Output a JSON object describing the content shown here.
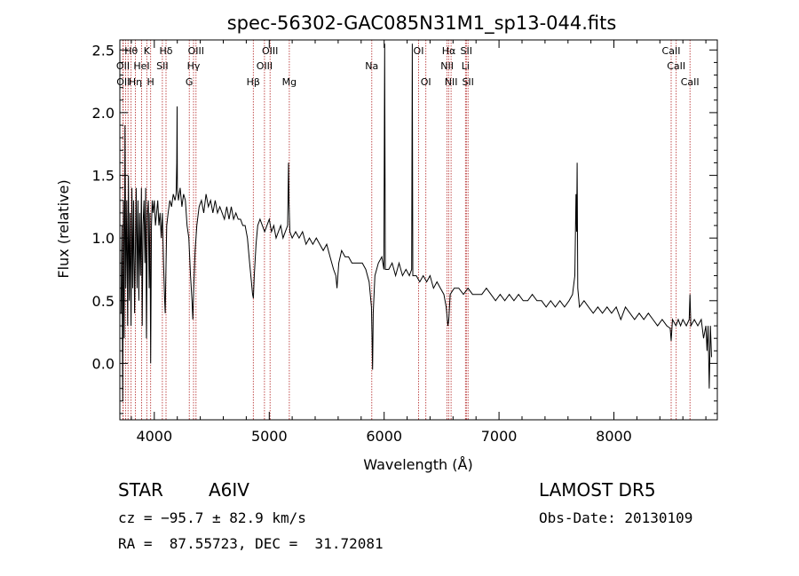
{
  "chart_data": {
    "type": "line",
    "title": "spec-56302-GAC085N31M1_sp13-044.fits",
    "xlabel": "Wavelength (Å)",
    "ylabel": "Flux (relative)",
    "xlim": [
      3700,
      8900
    ],
    "ylim": [
      -0.45,
      2.58
    ],
    "xticks": [
      4000,
      5000,
      6000,
      7000,
      8000
    ],
    "yticks": [
      0.0,
      0.5,
      1.0,
      1.5,
      2.0,
      2.5
    ],
    "ytick_labels": [
      "0.0",
      "0.5",
      "1.0",
      "1.5",
      "2.0",
      "2.5"
    ],
    "grid": false,
    "series": [
      {
        "values": [
          [
            3710,
            0.4
          ],
          [
            3718,
            1.1
          ],
          [
            3725,
            -0.3
          ],
          [
            3732,
            1.3
          ],
          [
            3738,
            0.2
          ],
          [
            3745,
            1.9
          ],
          [
            3752,
            0.6
          ],
          [
            3760,
            1.3
          ],
          [
            3768,
            0.3
          ],
          [
            3775,
            1.5
          ],
          [
            3782,
            0.5
          ],
          [
            3790,
            1.2
          ],
          [
            3797,
            0.3
          ],
          [
            3805,
            1.4
          ],
          [
            3812,
            0.6
          ],
          [
            3820,
            1.3
          ],
          [
            3828,
            0.4
          ],
          [
            3835,
            0.9
          ],
          [
            3842,
            1.4
          ],
          [
            3850,
            0.6
          ],
          [
            3858,
            1.3
          ],
          [
            3865,
            0.5
          ],
          [
            3872,
            1.2
          ],
          [
            3880,
            0.7
          ],
          [
            3888,
            1.4
          ],
          [
            3895,
            0.3
          ],
          [
            3902,
            1.1
          ],
          [
            3910,
            1.3
          ],
          [
            3918,
            0.8
          ],
          [
            3925,
            1.4
          ],
          [
            3932,
            0.2
          ],
          [
            3940,
            1.2
          ],
          [
            3948,
            1.3
          ],
          [
            3955,
            0.6
          ],
          [
            3962,
            1.2
          ],
          [
            3968,
            0.0
          ],
          [
            3975,
            1.1
          ],
          [
            3982,
            1.3
          ],
          [
            3990,
            1.2
          ],
          [
            4000,
            1.3
          ],
          [
            4010,
            1.1
          ],
          [
            4020,
            1.2
          ],
          [
            4030,
            1.3
          ],
          [
            4040,
            1.1
          ],
          [
            4050,
            1.2
          ],
          [
            4060,
            1.0
          ],
          [
            4070,
            1.2
          ],
          [
            4080,
            0.8
          ],
          [
            4090,
            0.5
          ],
          [
            4095,
            0.4
          ],
          [
            4100,
            0.7
          ],
          [
            4108,
            1.1
          ],
          [
            4120,
            1.2
          ],
          [
            4135,
            1.3
          ],
          [
            4150,
            1.25
          ],
          [
            4165,
            1.35
          ],
          [
            4180,
            1.3
          ],
          [
            4190,
            1.35
          ],
          [
            4195,
            1.6
          ],
          [
            4198,
            2.05
          ],
          [
            4201,
            1.4
          ],
          [
            4210,
            1.3
          ],
          [
            4225,
            1.4
          ],
          [
            4240,
            1.25
          ],
          [
            4255,
            1.35
          ],
          [
            4270,
            1.3
          ],
          [
            4285,
            1.1
          ],
          [
            4300,
            1.0
          ],
          [
            4315,
            0.7
          ],
          [
            4328,
            0.5
          ],
          [
            4335,
            0.35
          ],
          [
            4343,
            0.6
          ],
          [
            4355,
            0.9
          ],
          [
            4370,
            1.1
          ],
          [
            4390,
            1.25
          ],
          [
            4410,
            1.3
          ],
          [
            4430,
            1.2
          ],
          [
            4450,
            1.35
          ],
          [
            4470,
            1.25
          ],
          [
            4490,
            1.3
          ],
          [
            4510,
            1.2
          ],
          [
            4530,
            1.3
          ],
          [
            4550,
            1.2
          ],
          [
            4570,
            1.25
          ],
          [
            4590,
            1.2
          ],
          [
            4610,
            1.15
          ],
          [
            4630,
            1.25
          ],
          [
            4650,
            1.15
          ],
          [
            4670,
            1.25
          ],
          [
            4690,
            1.15
          ],
          [
            4710,
            1.2
          ],
          [
            4730,
            1.15
          ],
          [
            4750,
            1.15
          ],
          [
            4770,
            1.1
          ],
          [
            4790,
            1.1
          ],
          [
            4810,
            1.0
          ],
          [
            4830,
            0.8
          ],
          [
            4845,
            0.65
          ],
          [
            4855,
            0.55
          ],
          [
            4862,
            0.52
          ],
          [
            4870,
            0.7
          ],
          [
            4885,
            0.95
          ],
          [
            4900,
            1.1
          ],
          [
            4920,
            1.15
          ],
          [
            4940,
            1.1
          ],
          [
            4960,
            1.05
          ],
          [
            4980,
            1.1
          ],
          [
            5000,
            1.15
          ],
          [
            5020,
            1.05
          ],
          [
            5040,
            1.1
          ],
          [
            5060,
            1.0
          ],
          [
            5080,
            1.05
          ],
          [
            5100,
            1.1
          ],
          [
            5120,
            1.0
          ],
          [
            5140,
            1.05
          ],
          [
            5160,
            1.1
          ],
          [
            5168,
            1.6
          ],
          [
            5172,
            1.3
          ],
          [
            5180,
            1.05
          ],
          [
            5200,
            1.0
          ],
          [
            5230,
            1.05
          ],
          [
            5260,
            1.0
          ],
          [
            5290,
            1.05
          ],
          [
            5320,
            0.95
          ],
          [
            5350,
            1.0
          ],
          [
            5380,
            0.95
          ],
          [
            5410,
            1.0
          ],
          [
            5440,
            0.95
          ],
          [
            5470,
            0.9
          ],
          [
            5500,
            0.95
          ],
          [
            5530,
            0.85
          ],
          [
            5560,
            0.75
          ],
          [
            5580,
            0.7
          ],
          [
            5590,
            0.6
          ],
          [
            5605,
            0.8
          ],
          [
            5630,
            0.9
          ],
          [
            5660,
            0.85
          ],
          [
            5690,
            0.85
          ],
          [
            5720,
            0.8
          ],
          [
            5750,
            0.8
          ],
          [
            5780,
            0.8
          ],
          [
            5810,
            0.8
          ],
          [
            5840,
            0.75
          ],
          [
            5870,
            0.65
          ],
          [
            5890,
            0.45
          ],
          [
            5895,
            0.2
          ],
          [
            5900,
            -0.05
          ],
          [
            5905,
            0.4
          ],
          [
            5920,
            0.7
          ],
          [
            5950,
            0.8
          ],
          [
            5980,
            0.85
          ],
          [
            5998,
            0.75
          ],
          [
            6005,
            2.55
          ],
          [
            6010,
            0.75
          ],
          [
            6040,
            0.75
          ],
          [
            6070,
            0.8
          ],
          [
            6100,
            0.7
          ],
          [
            6130,
            0.8
          ],
          [
            6160,
            0.7
          ],
          [
            6190,
            0.75
          ],
          [
            6220,
            0.7
          ],
          [
            6240,
            0.75
          ],
          [
            6245,
            2.55
          ],
          [
            6250,
            0.7
          ],
          [
            6280,
            0.7
          ],
          [
            6310,
            0.65
          ],
          [
            6340,
            0.7
          ],
          [
            6370,
            0.65
          ],
          [
            6400,
            0.7
          ],
          [
            6430,
            0.6
          ],
          [
            6460,
            0.65
          ],
          [
            6490,
            0.6
          ],
          [
            6520,
            0.55
          ],
          [
            6540,
            0.45
          ],
          [
            6555,
            0.3
          ],
          [
            6563,
            0.35
          ],
          [
            6575,
            0.55
          ],
          [
            6610,
            0.6
          ],
          [
            6650,
            0.6
          ],
          [
            6690,
            0.55
          ],
          [
            6730,
            0.6
          ],
          [
            6770,
            0.55
          ],
          [
            6810,
            0.55
          ],
          [
            6850,
            0.55
          ],
          [
            6890,
            0.6
          ],
          [
            6930,
            0.55
          ],
          [
            6970,
            0.5
          ],
          [
            7010,
            0.55
          ],
          [
            7050,
            0.5
          ],
          [
            7090,
            0.55
          ],
          [
            7130,
            0.5
          ],
          [
            7170,
            0.55
          ],
          [
            7210,
            0.5
          ],
          [
            7250,
            0.5
          ],
          [
            7290,
            0.55
          ],
          [
            7330,
            0.5
          ],
          [
            7370,
            0.5
          ],
          [
            7410,
            0.45
          ],
          [
            7450,
            0.5
          ],
          [
            7490,
            0.45
          ],
          [
            7530,
            0.5
          ],
          [
            7570,
            0.45
          ],
          [
            7610,
            0.5
          ],
          [
            7640,
            0.55
          ],
          [
            7660,
            0.7
          ],
          [
            7670,
            1.35
          ],
          [
            7675,
            1.05
          ],
          [
            7680,
            1.6
          ],
          [
            7685,
            0.6
          ],
          [
            7700,
            0.45
          ],
          [
            7740,
            0.5
          ],
          [
            7780,
            0.45
          ],
          [
            7820,
            0.4
          ],
          [
            7860,
            0.45
          ],
          [
            7900,
            0.4
          ],
          [
            7940,
            0.45
          ],
          [
            7980,
            0.4
          ],
          [
            8020,
            0.45
          ],
          [
            8060,
            0.35
          ],
          [
            8100,
            0.45
          ],
          [
            8140,
            0.4
          ],
          [
            8180,
            0.35
          ],
          [
            8220,
            0.4
          ],
          [
            8260,
            0.35
          ],
          [
            8300,
            0.4
          ],
          [
            8340,
            0.35
          ],
          [
            8380,
            0.3
          ],
          [
            8420,
            0.35
          ],
          [
            8460,
            0.3
          ],
          [
            8490,
            0.28
          ],
          [
            8498,
            0.18
          ],
          [
            8510,
            0.35
          ],
          [
            8540,
            0.3
          ],
          [
            8560,
            0.35
          ],
          [
            8580,
            0.3
          ],
          [
            8600,
            0.35
          ],
          [
            8630,
            0.3
          ],
          [
            8655,
            0.35
          ],
          [
            8662,
            0.55
          ],
          [
            8670,
            0.3
          ],
          [
            8700,
            0.35
          ],
          [
            8730,
            0.3
          ],
          [
            8760,
            0.35
          ],
          [
            8780,
            0.2
          ],
          [
            8800,
            0.3
          ],
          [
            8810,
            0.1
          ],
          [
            8820,
            0.3
          ],
          [
            8830,
            -0.2
          ],
          [
            8840,
            0.3
          ],
          [
            8850,
            0.05
          ]
        ]
      }
    ],
    "line_markers": [
      {
        "wavelength": 3727,
        "labels": [
          "OII"
        ],
        "row": [
          1
        ]
      },
      {
        "wavelength": 3729,
        "labels": [
          "OII"
        ],
        "row": [
          2
        ]
      },
      {
        "wavelength": 3750,
        "labels": [],
        "row": []
      },
      {
        "wavelength": 3771,
        "labels": [],
        "row": []
      },
      {
        "wavelength": 3798,
        "labels": [
          "Hθ"
        ],
        "row": [
          0
        ]
      },
      {
        "wavelength": 3835,
        "labels": [
          "Hη"
        ],
        "row": [
          2
        ]
      },
      {
        "wavelength": 3889,
        "labels": [
          "HeI"
        ],
        "row": [
          1
        ]
      },
      {
        "wavelength": 3934,
        "labels": [
          "K"
        ],
        "row": [
          0
        ]
      },
      {
        "wavelength": 3968,
        "labels": [
          "H"
        ],
        "row": [
          2
        ]
      },
      {
        "wavelength": 4070,
        "labels": [
          "SII"
        ],
        "row": [
          1
        ]
      },
      {
        "wavelength": 4102,
        "labels": [
          "Hδ"
        ],
        "row": [
          0
        ]
      },
      {
        "wavelength": 4304,
        "labels": [
          "G"
        ],
        "row": [
          2
        ]
      },
      {
        "wavelength": 4341,
        "labels": [
          "Hγ"
        ],
        "row": [
          1
        ]
      },
      {
        "wavelength": 4363,
        "labels": [
          "OIII"
        ],
        "row": [
          0
        ]
      },
      {
        "wavelength": 4861,
        "labels": [
          "Hβ"
        ],
        "row": [
          2
        ]
      },
      {
        "wavelength": 4959,
        "labels": [
          "OIII"
        ],
        "row": [
          1
        ]
      },
      {
        "wavelength": 5007,
        "labels": [
          "OIII"
        ],
        "row": [
          0
        ]
      },
      {
        "wavelength": 5175,
        "labels": [
          "Mg"
        ],
        "row": [
          2
        ]
      },
      {
        "wavelength": 5893,
        "labels": [
          "Na"
        ],
        "row": [
          1
        ]
      },
      {
        "wavelength": 6300,
        "labels": [
          "OI"
        ],
        "row": [
          0
        ]
      },
      {
        "wavelength": 6363,
        "labels": [
          "OI"
        ],
        "row": [
          2
        ]
      },
      {
        "wavelength": 6548,
        "labels": [
          "NII"
        ],
        "row": [
          1
        ]
      },
      {
        "wavelength": 6563,
        "labels": [
          "Hα"
        ],
        "row": [
          0
        ]
      },
      {
        "wavelength": 6583,
        "labels": [
          "NII"
        ],
        "row": [
          2
        ]
      },
      {
        "wavelength": 6708,
        "labels": [
          "Li"
        ],
        "row": [
          1
        ]
      },
      {
        "wavelength": 6716,
        "labels": [
          "SII"
        ],
        "row": [
          0
        ]
      },
      {
        "wavelength": 6730,
        "labels": [
          "SII"
        ],
        "row": [
          2
        ]
      },
      {
        "wavelength": 8498,
        "labels": [
          "CaII"
        ],
        "row": [
          0
        ]
      },
      {
        "wavelength": 8542,
        "labels": [
          "CaII"
        ],
        "row": [
          1
        ]
      },
      {
        "wavelength": 8662,
        "labels": [
          "CaII"
        ],
        "row": [
          2
        ]
      }
    ],
    "colors": {
      "spectrum": "#000000",
      "markers": "#b22222",
      "axes": "#000000"
    }
  },
  "info": {
    "object_class": "STAR",
    "subclass": "A6IV",
    "survey": "LAMOST DR5",
    "cz": "cz = −95.7 ± 82.9 km/s",
    "obs_date": "Obs-Date: 20130109",
    "coords": "RA =  87.55723, DEC =  31.72081"
  }
}
